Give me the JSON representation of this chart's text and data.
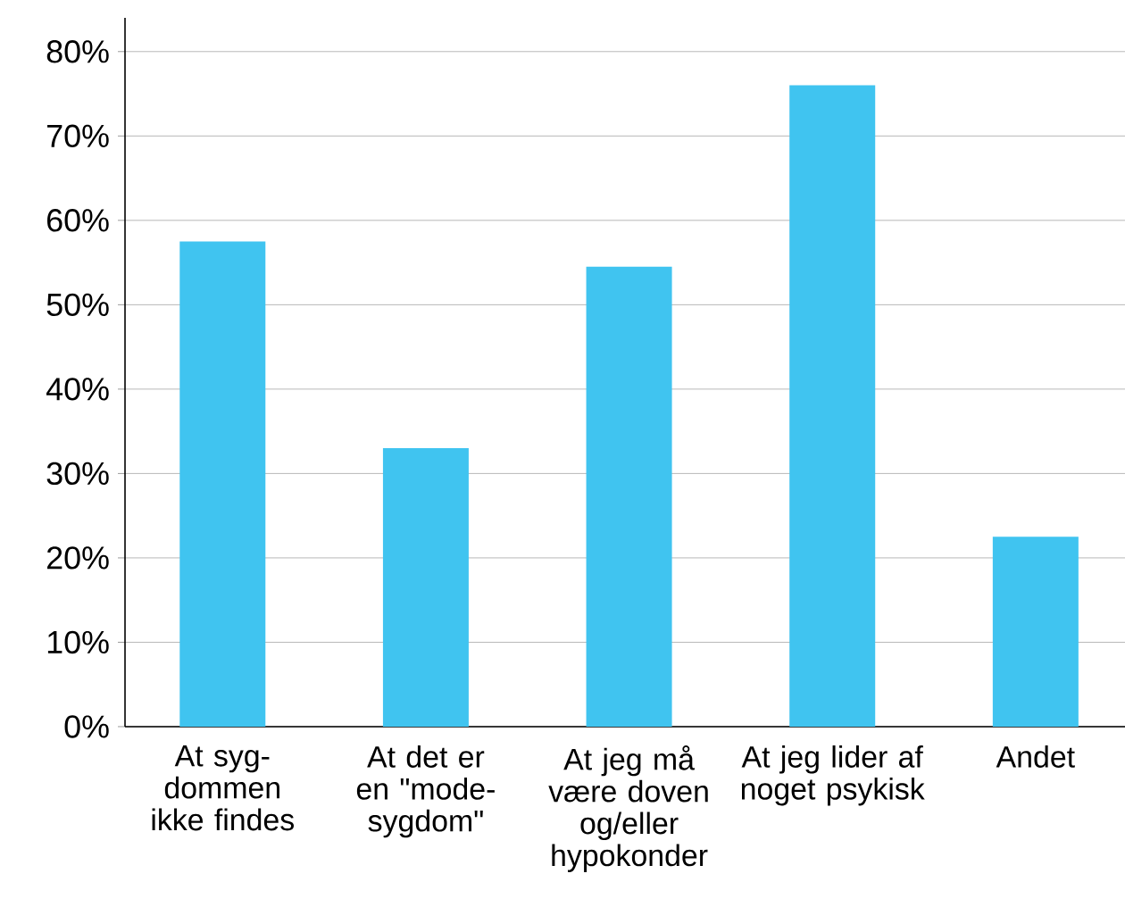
{
  "chart_data": {
    "type": "bar",
    "categories": [
      "At syg-dommen ikke findes",
      "At det er en \"mode-sygdom\"",
      "At jeg må være doven og/eller hypokonder",
      "At jeg lider af noget psykisk",
      "Andet"
    ],
    "values": [
      57.5,
      33,
      54.5,
      76,
      22.5
    ],
    "color": "#40c4f0",
    "ylim": [
      0,
      84
    ],
    "yticks": [
      {
        "value": 0,
        "label": "0%"
      },
      {
        "value": 10,
        "label": "10%"
      },
      {
        "value": 20,
        "label": "20%"
      },
      {
        "value": 30,
        "label": "30%"
      },
      {
        "value": 40,
        "label": "40%"
      },
      {
        "value": 50,
        "label": "50%"
      },
      {
        "value": 60,
        "label": "60%"
      },
      {
        "value": 70,
        "label": "70%"
      },
      {
        "value": 80,
        "label": "80%"
      }
    ],
    "grid": "y"
  }
}
